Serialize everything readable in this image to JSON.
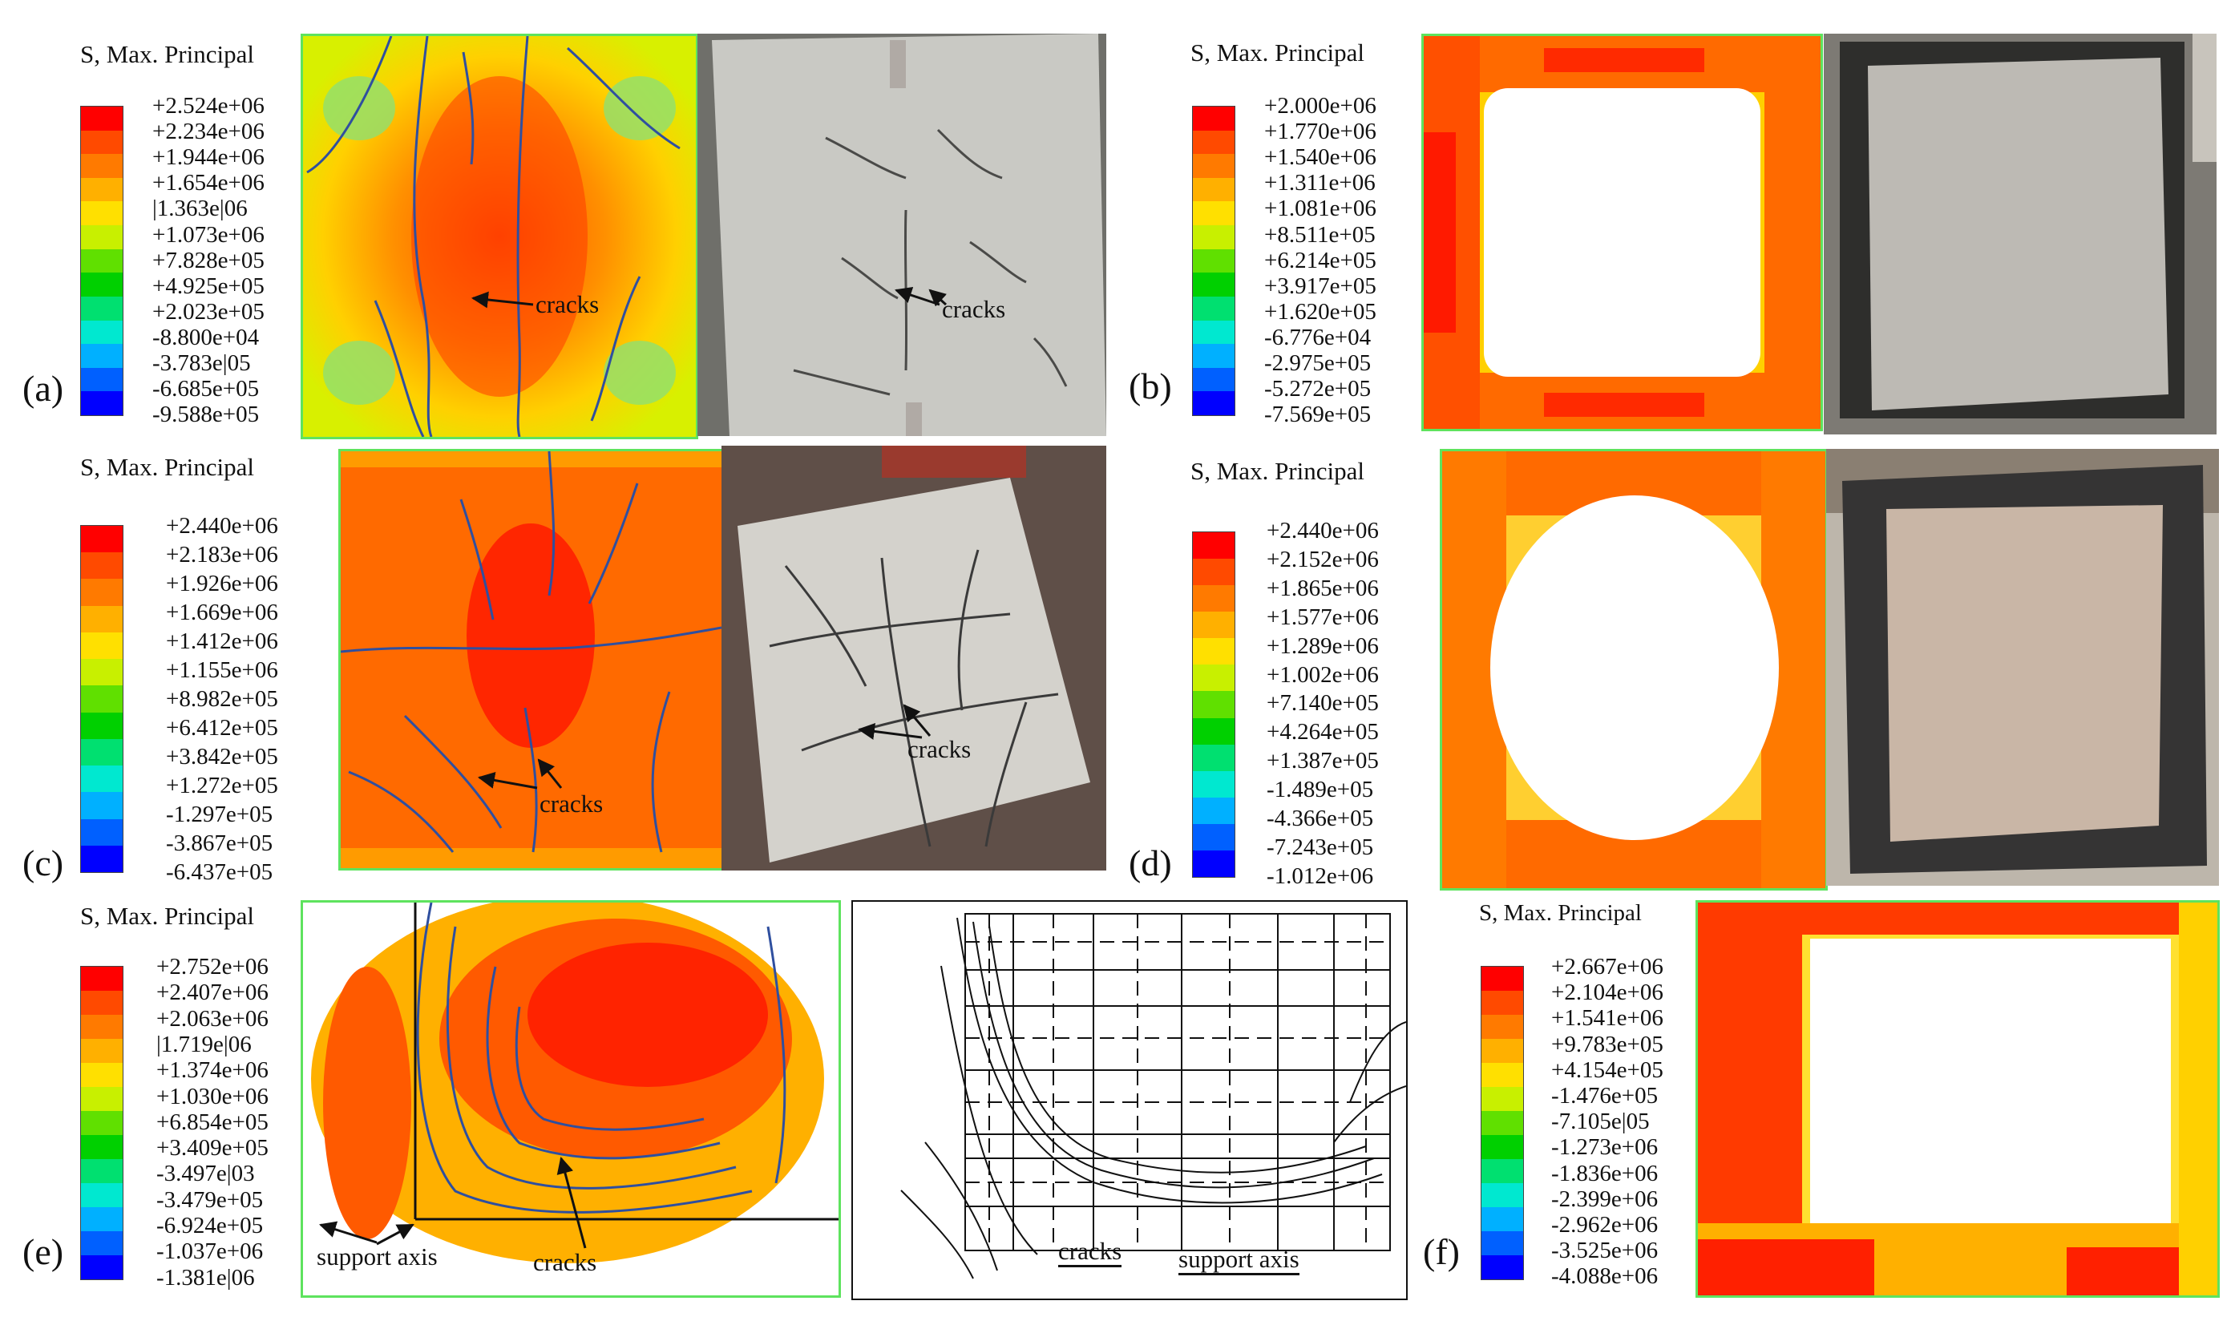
{
  "legend_title": "S, Max. Principal",
  "labels": {
    "cracks": "cracks",
    "support_axis": "support axis"
  },
  "colors": {
    "scale": [
      "#ff0000",
      "#ff4a00",
      "#ff7a00",
      "#ffb000",
      "#ffe000",
      "#c8f000",
      "#60e000",
      "#00d000",
      "#00e070",
      "#00e8d0",
      "#00b0ff",
      "#0060ff",
      "#0000ff"
    ],
    "frame_green": "#5ee35e",
    "crack_line": "#2f4f9f"
  },
  "panels": [
    {
      "letter": "(a)",
      "values": [
        "+2.524e+06",
        "+2.234e+06",
        "+1.944e+06",
        "+1.654e+06",
        "|1.363e|06",
        "+1.073e+06",
        "+7.828e+05",
        "+4.925e+05",
        "+2.023e+05",
        "-8.800e+04",
        "-3.783e|05",
        "-6.685e+05",
        "-9.588e+05"
      ]
    },
    {
      "letter": "(b)",
      "values": [
        "+2.000e+06",
        "+1.770e+06",
        "+1.540e+06",
        "+1.311e+06",
        "+1.081e+06",
        "+8.511e+05",
        "+6.214e+05",
        "+3.917e+05",
        "+1.620e+05",
        "-6.776e+04",
        "-2.975e+05",
        "-5.272e+05",
        "-7.569e+05"
      ]
    },
    {
      "letter": "(c)",
      "values": [
        "+2.440e+06",
        "+2.183e+06",
        "+1.926e+06",
        "+1.669e+06",
        "+1.412e+06",
        "+1.155e+06",
        "+8.982e+05",
        "+6.412e+05",
        "+3.842e+05",
        "+1.272e+05",
        "-1.297e+05",
        "-3.867e+05",
        "-6.437e+05"
      ]
    },
    {
      "letter": "(d)",
      "values": [
        "+2.440e+06",
        "+2.152e+06",
        "+1.865e+06",
        "+1.577e+06",
        "+1.289e+06",
        "+1.002e+06",
        "+7.140e+05",
        "+4.264e+05",
        "+1.387e+05",
        "-1.489e+05",
        "-4.366e+05",
        "-7.243e+05",
        "-1.012e+06"
      ]
    },
    {
      "letter": "(e)",
      "values": [
        "+2.752e+06",
        "+2.407e+06",
        "+2.063e+06",
        "|1.719e|06",
        "+1.374e+06",
        "+1.030e+06",
        "+6.854e+05",
        "+3.409e+05",
        "-3.497e|03",
        "-3.479e+05",
        "-6.924e+05",
        "-1.037e+06",
        "-1.381e|06"
      ]
    },
    {
      "letter": "(f)",
      "values": [
        "+2.667e+06",
        "+2.104e+06",
        "+1.541e+06",
        "+9.783e+05",
        "+4.154e+05",
        "-1.476e+05",
        "-7.105e|05",
        "-1.273e+06",
        "-1.836e+06",
        "-2.399e+06",
        "-2.962e+06",
        "-3.525e+06",
        "-4.088e+06"
      ]
    }
  ]
}
